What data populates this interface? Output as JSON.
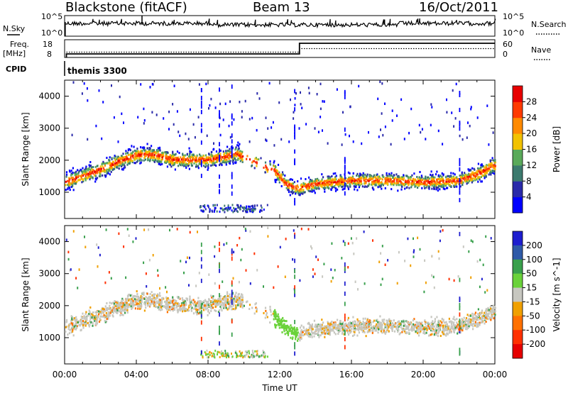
{
  "header": {
    "title": "Blackstone (fitACF)",
    "beam": "Beam 13",
    "date": "16/Oct/2011"
  },
  "chart_data": [
    {
      "type": "line",
      "title": "",
      "left_label": "N.Sky",
      "right_label": "N.Search",
      "ytick_labels_left": [
        "10^5",
        "10^0"
      ],
      "ytick_labels_right": [
        "10^5",
        "10^0"
      ],
      "x": [
        0,
        24
      ],
      "series": [
        {
          "name": "N.Sky",
          "values": [
            4.0,
            3.6
          ]
        },
        {
          "name": "N.Search",
          "values": [
            0,
            0
          ]
        }
      ]
    },
    {
      "type": "line",
      "left_label": "Freq.",
      "left_unit": "[MHz]",
      "right_label": "Nave",
      "ytick_labels_left": [
        "18",
        "8"
      ],
      "ytick_labels_right": [
        "60",
        "0"
      ],
      "freq_steps": [
        {
          "t0": 0.1,
          "t1": 13.1,
          "mhz": 10.0
        },
        {
          "t0": 13.1,
          "t1": 24,
          "mhz": 16.0
        }
      ],
      "nave_steps": [
        {
          "t0": 0.1,
          "t1": 13.1,
          "n": 18
        },
        {
          "t0": 13.1,
          "t1": 24,
          "n": 30
        }
      ]
    },
    {
      "type": "heatmap",
      "cpid_label": "CPID",
      "cpid_value": "themis 3300",
      "panel": "power",
      "ylabel": "Slant Range [km]",
      "ylim": [
        180,
        4500
      ],
      "ytick_labels": [
        "1000",
        "2000",
        "3000",
        "4000"
      ],
      "colorbar_label": "Power [dB]",
      "colorbar_ticks": [
        "4",
        "8",
        "12",
        "16",
        "20",
        "24",
        "28"
      ],
      "colorbar_colors": [
        "#0000ff",
        "#2a2aaa",
        "#3c7a6e",
        "#5aaa5a",
        "#f2c200",
        "#ff8a00",
        "#ff3a00",
        "#e80000"
      ],
      "band_centers_km": [
        [
          0,
          1300
        ],
        [
          1,
          1500
        ],
        [
          2,
          1700
        ],
        [
          3,
          1950
        ],
        [
          4,
          2150
        ],
        [
          5,
          2150
        ],
        [
          6,
          2000
        ],
        [
          7,
          2000
        ],
        [
          8,
          2000
        ],
        [
          9,
          2100
        ],
        [
          9.5,
          2200
        ],
        [
          11.7,
          1650
        ],
        [
          12.3,
          1250
        ],
        [
          13,
          1100
        ],
        [
          14,
          1250
        ],
        [
          16,
          1350
        ],
        [
          18,
          1350
        ],
        [
          20,
          1300
        ],
        [
          22,
          1350
        ],
        [
          23,
          1550
        ],
        [
          24,
          1850
        ]
      ]
    },
    {
      "type": "heatmap",
      "panel": "velocity",
      "ylabel": "Slant Range [km]",
      "ylim": [
        180,
        4500
      ],
      "ytick_labels": [
        "1000",
        "2000",
        "3000",
        "4000"
      ],
      "xtick_labels": [
        "00:00",
        "04:00",
        "08:00",
        "12:00",
        "16:00",
        "20:00",
        "00:00"
      ],
      "xlabel": "Time UT",
      "colorbar_label": "Velocity [m s^-1]",
      "colorbar_ticks": [
        "200",
        "100",
        "50",
        "15",
        "-15",
        "-50",
        "-100",
        "-200"
      ],
      "colorbar_colors": [
        "#1e1ecf",
        "#2f5aa8",
        "#39a04c",
        "#6ad23a",
        "#c7c7c0",
        "#f0a000",
        "#ff7000",
        "#ff3000",
        "#e60000"
      ]
    }
  ]
}
